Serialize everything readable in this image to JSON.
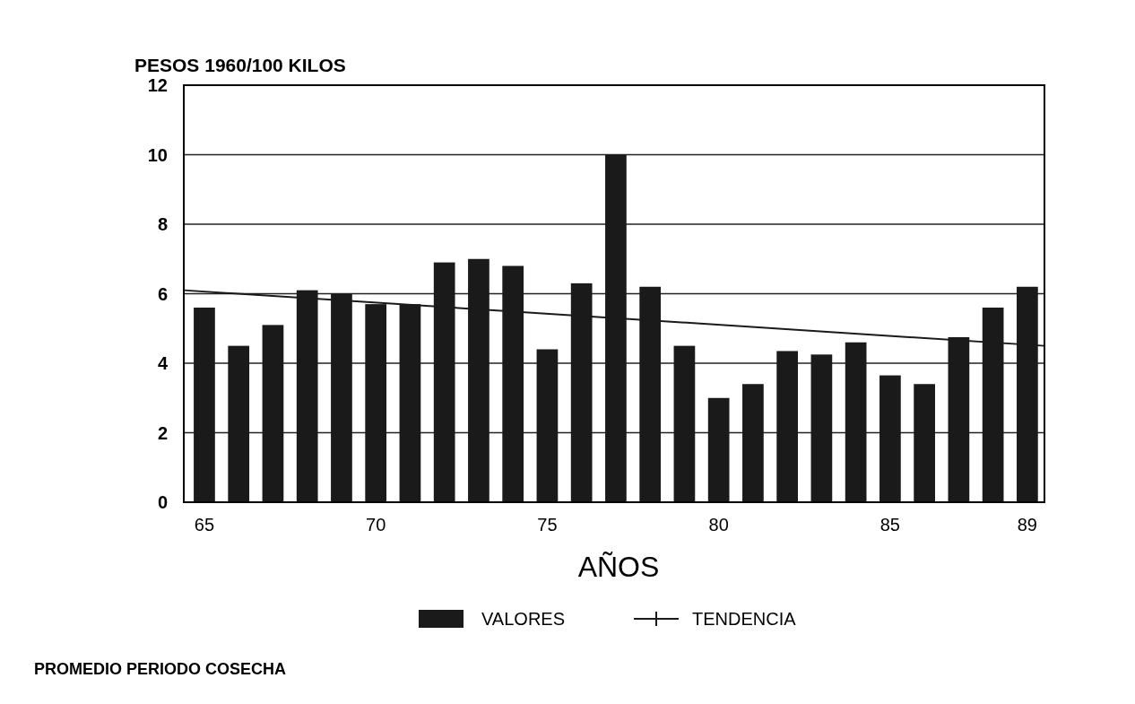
{
  "chart_data": {
    "type": "bar",
    "ylabel": "PESOS 1960/100 KILOS",
    "xlabel": "AÑOS",
    "x": [
      65,
      66,
      67,
      68,
      69,
      70,
      71,
      72,
      73,
      74,
      75,
      76,
      77,
      78,
      79,
      80,
      81,
      82,
      83,
      84,
      85,
      86,
      87,
      88,
      89
    ],
    "series": [
      {
        "name": "VALORES",
        "color": "#1a1a1a",
        "values": [
          5.6,
          4.5,
          5.1,
          6.1,
          6.0,
          5.7,
          5.7,
          6.9,
          7.0,
          6.8,
          4.4,
          6.3,
          10.0,
          6.2,
          4.5,
          3.0,
          3.4,
          4.35,
          4.25,
          4.6,
          3.65,
          3.4,
          4.75,
          5.6,
          6.2
        ]
      },
      {
        "name": "TENDENCIA",
        "type": "line",
        "color": "#1a1a1a",
        "x": [
          64.4,
          89.5
        ],
        "values": [
          6.1,
          4.5
        ]
      }
    ],
    "xlim": [
      64.4,
      89.5
    ],
    "xticks": [
      65,
      70,
      75,
      80,
      85,
      89
    ],
    "ylim": [
      0,
      12
    ],
    "yticks": [
      0,
      2,
      4,
      6,
      8,
      10,
      12
    ],
    "grid": "y",
    "legend": "bottom",
    "annotations": [
      "PROMEDIO PERIODO COSECHA"
    ]
  }
}
